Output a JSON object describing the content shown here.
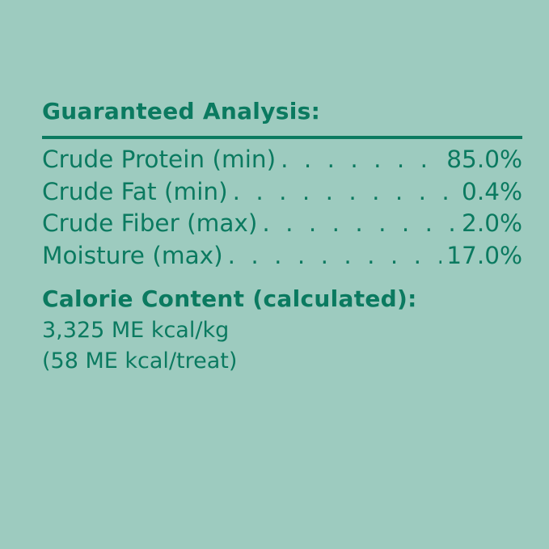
{
  "colors": {
    "background": "#9dcbbf",
    "text": "#0b7a60"
  },
  "analysis": {
    "title": "Guaranteed Analysis:",
    "rows": [
      {
        "label": "Crude Protein (min)",
        "value": "85.0%"
      },
      {
        "label": "Crude Fat (min)",
        "value": "0.4%"
      },
      {
        "label": "Crude Fiber (max)",
        "value": "2.0%"
      },
      {
        "label": "Moisture (max)",
        "value": "17.0%"
      }
    ]
  },
  "calorie": {
    "title": "Calorie Content (calculated):",
    "lines": [
      "3,325 ME kcal/kg",
      "(58 ME kcal/treat)"
    ]
  }
}
